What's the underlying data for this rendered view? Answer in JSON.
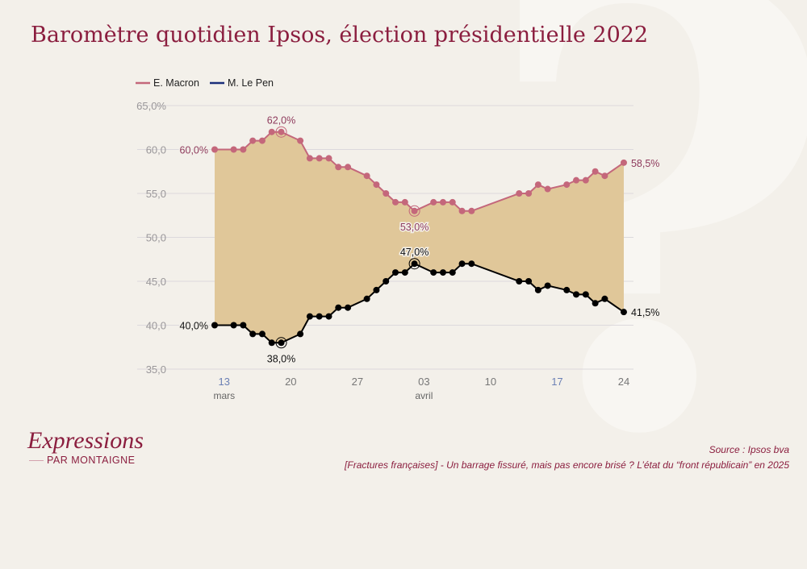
{
  "title": "Baromètre quotidien Ipsos, élection présidentielle 2022",
  "footer": {
    "logo_main": "Expressions",
    "logo_sub": "PAR MONTAIGNE",
    "source": "Source : Ipsos bva",
    "note": "[Fractures françaises] - Un barrage fissuré, mais pas encore brisé ? L’état du “front républicain” en 2025"
  },
  "chart_data": {
    "type": "line",
    "title": "Baromètre quotidien Ipsos, élection présidentielle 2022",
    "legend_position": "top-left",
    "grid": true,
    "ylim": [
      35,
      65
    ],
    "y_ticks": [
      "65,0%",
      "60,0",
      "55,0",
      "50,0",
      "45,0",
      "40,0",
      "35,0"
    ],
    "y_tick_values": [
      65,
      60,
      55,
      50,
      45,
      40,
      35
    ],
    "x_ticks": [
      {
        "date": "2022-03-13",
        "label": "13",
        "sub": "mars",
        "highlight": true
      },
      {
        "date": "2022-03-20",
        "label": "20",
        "sub": "",
        "highlight": false
      },
      {
        "date": "2022-03-27",
        "label": "27",
        "sub": "",
        "highlight": false
      },
      {
        "date": "2022-04-03",
        "label": "03",
        "sub": "avril",
        "highlight": false
      },
      {
        "date": "2022-04-10",
        "label": "10",
        "sub": "",
        "highlight": false
      },
      {
        "date": "2022-04-17",
        "label": "17",
        "sub": "",
        "highlight": true
      },
      {
        "date": "2022-04-24",
        "label": "24",
        "sub": "",
        "highlight": false
      }
    ],
    "x": [
      "2022-03-12",
      "2022-03-14",
      "2022-03-15",
      "2022-03-16",
      "2022-03-17",
      "2022-03-18",
      "2022-03-19",
      "2022-03-21",
      "2022-03-22",
      "2022-03-23",
      "2022-03-24",
      "2022-03-25",
      "2022-03-26",
      "2022-03-28",
      "2022-03-29",
      "2022-03-30",
      "2022-03-31",
      "2022-04-01",
      "2022-04-02",
      "2022-04-04",
      "2022-04-05",
      "2022-04-06",
      "2022-04-07",
      "2022-04-08",
      "2022-04-13",
      "2022-04-14",
      "2022-04-15",
      "2022-04-16",
      "2022-04-18",
      "2022-04-19",
      "2022-04-20",
      "2022-04-21",
      "2022-04-22",
      "2022-04-24"
    ],
    "series": [
      {
        "name": "E. Macron",
        "color": "#c4677b",
        "label_color": "#8e3a5c",
        "values": [
          60,
          60,
          60,
          61,
          61,
          62,
          62,
          61,
          59,
          59,
          59,
          58,
          58,
          57,
          56,
          55,
          54,
          54,
          53,
          54,
          54,
          54,
          53,
          53,
          55,
          55,
          56,
          55.5,
          56,
          56.5,
          56.5,
          57.5,
          57,
          58.5
        ],
        "annotations": [
          {
            "index": 0,
            "label": "60,0%",
            "pos": "left"
          },
          {
            "index": 6,
            "label": "62,0%",
            "pos": "above",
            "ring": true
          },
          {
            "index": 18,
            "label": "53,0%",
            "pos": "below",
            "ring": true
          },
          {
            "index": 33,
            "label": "58,5%",
            "pos": "right"
          }
        ]
      },
      {
        "name": "M. Le Pen",
        "color": "#000000",
        "legend_color": "#1a2e7a",
        "label_color": "#111111",
        "values": [
          40,
          40,
          40,
          39,
          39,
          38,
          38,
          39,
          41,
          41,
          41,
          42,
          42,
          43,
          44,
          45,
          46,
          46,
          47,
          46,
          46,
          46,
          47,
          47,
          45,
          45,
          44,
          44.5,
          44,
          43.5,
          43.5,
          42.5,
          43,
          41.5
        ],
        "annotations": [
          {
            "index": 0,
            "label": "40,0%",
            "pos": "left"
          },
          {
            "index": 6,
            "label": "38,0%",
            "pos": "below",
            "ring": true
          },
          {
            "index": 18,
            "label": "47,0%",
            "pos": "above",
            "ring": true
          },
          {
            "index": 33,
            "label": "41,5%",
            "pos": "right"
          }
        ]
      }
    ],
    "fill_between_color": "#e0c799"
  }
}
